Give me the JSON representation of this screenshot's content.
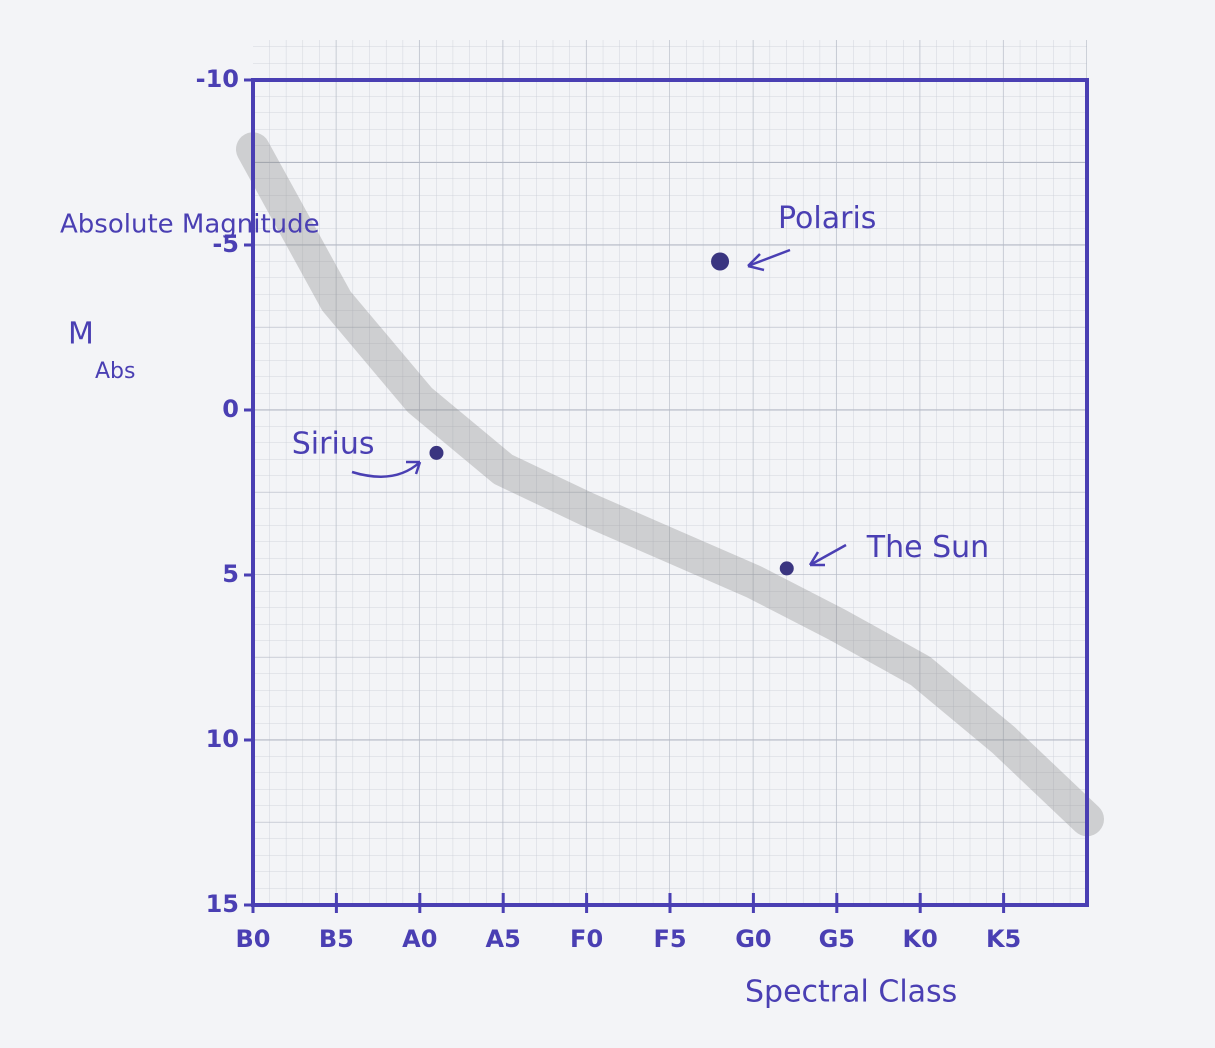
{
  "chart_data": {
    "type": "scatter",
    "y_label": "Absolute Magnitude",
    "y_label_symbol": "M",
    "y_label_subscript": "Abs",
    "x_label": "Spectral Class",
    "xlim": [
      0,
      10
    ],
    "xticks": [
      {
        "value": 0,
        "label": "B0"
      },
      {
        "value": 1,
        "label": "B5"
      },
      {
        "value": 2,
        "label": "A0"
      },
      {
        "value": 3,
        "label": "A5"
      },
      {
        "value": 4,
        "label": "F0"
      },
      {
        "value": 5,
        "label": "F5"
      },
      {
        "value": 6,
        "label": "G0"
      },
      {
        "value": 7,
        "label": "G5"
      },
      {
        "value": 8,
        "label": "K0"
      },
      {
        "value": 9,
        "label": "K5"
      }
    ],
    "ylim": [
      -10,
      15
    ],
    "yticks": [
      -10,
      -5,
      0,
      5,
      10,
      15
    ],
    "grid": true,
    "color": "#3a3580",
    "points": [
      {
        "name": "Polaris",
        "x": 5.6,
        "y": -4.5
      },
      {
        "name": "Sirius",
        "x": 2.2,
        "y": 1.3
      },
      {
        "name": "The Sun",
        "x": 6.4,
        "y": 4.8
      }
    ],
    "main_sequence": {
      "color": "#8a8a8a",
      "x": [
        0,
        1,
        2,
        3,
        4,
        5,
        6,
        7,
        8,
        9,
        10
      ],
      "y": [
        -7.9,
        -3.3,
        -0.3,
        1.8,
        3.0,
        4.1,
        5.2,
        6.5,
        7.9,
        10,
        12.4
      ]
    }
  }
}
